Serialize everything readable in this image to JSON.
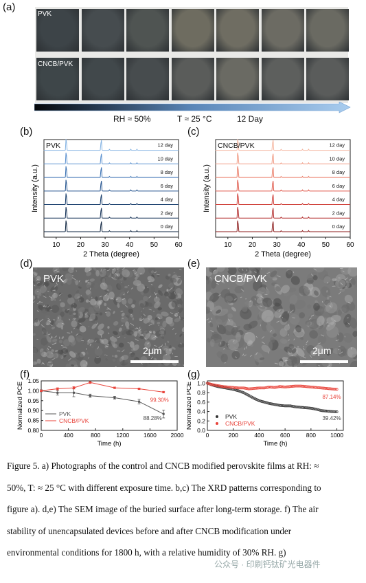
{
  "panel_a": {
    "label": "(a)",
    "rows": [
      {
        "name": "PVK",
        "colors": [
          "#3d4448",
          "#464c4f",
          "#4f5452",
          "#6e6c60",
          "#6f6d62",
          "#6c6b63",
          "#6a6a62"
        ]
      },
      {
        "name": "CNCB/PVK",
        "colors": [
          "#3e4649",
          "#41484b",
          "#474c4e",
          "#5a5c5a",
          "#6a6a63",
          "#5d5f5d",
          "#5a5c5b"
        ]
      }
    ],
    "conditions": {
      "rh": "RH ≈ 50%",
      "t": "T ≈ 25 °C",
      "days": "12 Day"
    }
  },
  "panel_b": {
    "label": "(b)"
  },
  "panel_c": {
    "label": "(c)"
  },
  "panel_d": {
    "label": "(d)",
    "title": "PVK",
    "scale": "2μm"
  },
  "panel_e": {
    "label": "(e)",
    "title": "CNCB/PVK",
    "scale": "2μm"
  },
  "panel_f": {
    "label": "(f)"
  },
  "panel_g": {
    "label": "(g)"
  },
  "chart_data": [
    {
      "type": "line",
      "title": "PVK",
      "xlabel": "2 Theta (degree)",
      "ylabel": "Intensity (a.u.)",
      "xlim": [
        5,
        60
      ],
      "xticks": [
        10,
        20,
        30,
        40,
        50,
        60
      ],
      "series": [
        {
          "name": "0 day",
          "color": "#0e2440"
        },
        {
          "name": "2 day",
          "color": "#143157"
        },
        {
          "name": "4 day",
          "color": "#1a3f6d"
        },
        {
          "name": "6 day",
          "color": "#275690"
        },
        {
          "name": "8 day",
          "color": "#3b72b3"
        },
        {
          "name": "10 day",
          "color": "#5b91cf"
        },
        {
          "name": "12 day",
          "color": "#86b4e3"
        }
      ],
      "peaks": [
        14.1,
        28.4,
        31.8,
        40.5,
        43.0
      ]
    },
    {
      "type": "line",
      "title": "CNCB/PVK",
      "xlabel": "2 Theta (degree)",
      "ylabel": "Intensity (a.u.)",
      "xlim": [
        5,
        60
      ],
      "xticks": [
        10,
        20,
        30,
        40,
        50,
        60
      ],
      "series": [
        {
          "name": "0 day",
          "color": "#8b1a1a"
        },
        {
          "name": "2 day",
          "color": "#b22a2a"
        },
        {
          "name": "4 day",
          "color": "#cf3d37"
        },
        {
          "name": "6 day",
          "color": "#e05a4c"
        },
        {
          "name": "8 day",
          "color": "#ea7b66"
        },
        {
          "name": "10 day",
          "color": "#f19a83"
        },
        {
          "name": "12 day",
          "color": "#f5b6a0"
        }
      ],
      "peaks": [
        14.1,
        28.4,
        31.8,
        40.5,
        43.0
      ]
    },
    {
      "type": "line",
      "xlabel": "Time (h)",
      "ylabel": "Normalized PCE",
      "xlim": [
        0,
        2000
      ],
      "ylim": [
        0.8,
        1.05
      ],
      "xticks": [
        0,
        400,
        800,
        1200,
        1600,
        2000
      ],
      "yticks": [
        0.8,
        0.85,
        0.9,
        0.95,
        1.0,
        1.05
      ],
      "series": [
        {
          "name": "PVK",
          "color": "#555555",
          "x": [
            0,
            240,
            480,
            720,
            1080,
            1440,
            1800
          ],
          "y": [
            1.0,
            0.99,
            0.99,
            0.975,
            0.965,
            0.945,
            0.8828
          ],
          "err": [
            0.005,
            0.012,
            0.02,
            0.008,
            0.007,
            0.012,
            0.02
          ]
        },
        {
          "name": "CNCB/PVK",
          "color": "#e8433a",
          "x": [
            0,
            240,
            480,
            720,
            1080,
            1440,
            1800
          ],
          "y": [
            1.0,
            1.01,
            1.015,
            1.042,
            1.015,
            1.01,
            0.993
          ],
          "err": [
            0.004,
            0.005,
            0.006,
            0.005,
            0.004,
            0.004,
            0.004
          ]
        }
      ],
      "annotations": [
        {
          "text": "99.30%",
          "color": "#e8433a"
        },
        {
          "text": "88.28%",
          "color": "#444444"
        }
      ],
      "legend_position": "bottom-left"
    },
    {
      "type": "scatter",
      "xlabel": "Time (h)",
      "ylabel": "Normalized PCE",
      "xlim": [
        0,
        1050
      ],
      "ylim": [
        0.0,
        1.05
      ],
      "xticks": [
        0,
        200,
        400,
        600,
        800,
        1000
      ],
      "yticks": [
        0.0,
        0.2,
        0.4,
        0.6,
        0.8,
        1.0
      ],
      "series": [
        {
          "name": "PVK",
          "color": "#333333",
          "x": [
            0,
            40,
            80,
            120,
            160,
            200,
            240,
            280,
            320,
            360,
            400,
            440,
            480,
            520,
            560,
            600,
            640,
            680,
            720,
            760,
            800,
            840,
            880,
            920,
            960,
            1000
          ],
          "y": [
            1.0,
            0.96,
            0.93,
            0.91,
            0.89,
            0.87,
            0.84,
            0.8,
            0.74,
            0.68,
            0.63,
            0.6,
            0.57,
            0.55,
            0.53,
            0.52,
            0.52,
            0.5,
            0.49,
            0.48,
            0.47,
            0.45,
            0.42,
            0.41,
            0.4,
            0.3942
          ]
        },
        {
          "name": "CNCB/PVK",
          "color": "#e8433a",
          "x": [
            0,
            40,
            80,
            120,
            160,
            200,
            240,
            280,
            320,
            360,
            400,
            440,
            480,
            520,
            560,
            600,
            640,
            680,
            720,
            760,
            800,
            840,
            880,
            920,
            960,
            1000
          ],
          "y": [
            1.0,
            0.97,
            0.95,
            0.93,
            0.92,
            0.91,
            0.9,
            0.9,
            0.88,
            0.89,
            0.9,
            0.9,
            0.92,
            0.91,
            0.93,
            0.92,
            0.93,
            0.94,
            0.94,
            0.93,
            0.92,
            0.91,
            0.9,
            0.89,
            0.88,
            0.8714
          ]
        }
      ],
      "annotations": [
        {
          "text": "87.14%",
          "color": "#e8433a"
        },
        {
          "text": "39.42%",
          "color": "#444444"
        }
      ],
      "legend_position": "bottom-left"
    }
  ],
  "caption": {
    "lines": [
      "Figure 5. a) Photographs of the control and CNCB modified perovskite films at RH: ≈",
      "50%, T: ≈ 25 °C with different exposure time. b,c) The XRD patterns corresponding to",
      "figure a). d,e) The SEM image of the buried surface after long-term storage. f) The air",
      "stability of unencapsulated devices before and after CNCB modification under",
      "environmental conditions for 1800 h, with a relative humidity of 30% RH. g)"
    ]
  },
  "watermark": "公众号 · 印刷钙钛矿光电器件"
}
